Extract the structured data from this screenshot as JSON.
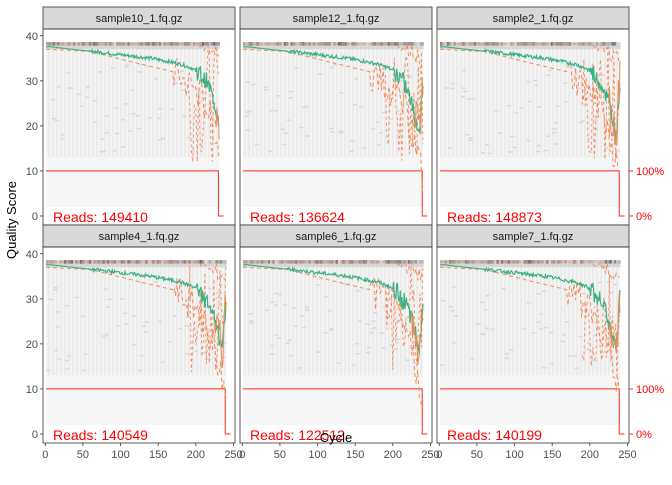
{
  "chart_data": {
    "type": "heatmap",
    "description_type": "faceted quality profile (heatmap of quality score distribution per cycle, with mean/quartile lines and cumulative read-length line)",
    "xlabel": "Cycle",
    "ylabel": "Quality Score",
    "x_ticks": [
      0,
      50,
      100,
      150,
      200,
      250
    ],
    "y_ticks": [
      0,
      10,
      20,
      30,
      40
    ],
    "secondary_y_ticks": [
      "0%",
      "100%"
    ],
    "xlim": [
      -3,
      252
    ],
    "ylim": [
      -2,
      41.5
    ],
    "colors": {
      "mean_line": "#3CB185",
      "quartile_lines": "#F28C5E",
      "cumulative_line": "#FF2A1A",
      "annotation": "#FF0000",
      "strip_bg": "#D9D9D9",
      "heat_low": "#EFEFEF",
      "heat_high": "#7A6A6A"
    },
    "facets": [
      {
        "title": "sample10_1.fq.gz",
        "reads_label": "Reads:  149410",
        "max_cycle": 231
      },
      {
        "title": "sample12_1.fq.gz",
        "reads_label": "Reads:  136624",
        "max_cycle": 240
      },
      {
        "title": "sample2_1.fq.gz",
        "reads_label": "Reads:  148873",
        "max_cycle": 240
      },
      {
        "title": "sample4_1.fq.gz",
        "reads_label": "Reads:  140549",
        "max_cycle": 240
      },
      {
        "title": "sample6_1.fq.gz",
        "reads_label": "Reads:  122512",
        "max_cycle": 240
      },
      {
        "title": "sample7_1.fq.gz",
        "reads_label": "Reads:  140199",
        "max_cycle": 240
      }
    ],
    "mean_profile": {
      "cycle": [
        1,
        5,
        20,
        40,
        60,
        80,
        100,
        120,
        140,
        160,
        180,
        195,
        205,
        215,
        220,
        225,
        230,
        235,
        240
      ],
      "quality": [
        37.5,
        37.6,
        37.3,
        36.9,
        36.6,
        36.2,
        35.8,
        35.4,
        35.0,
        34.4,
        33.7,
        32.8,
        31.5,
        29.5,
        27.5,
        25.0,
        22.0,
        18.0,
        30.0
      ]
    },
    "lower_quartile_profile": {
      "cycle": [
        1,
        60,
        120,
        170,
        200,
        215,
        225,
        235,
        240
      ],
      "quality": [
        37.0,
        36.5,
        34.0,
        32.0,
        28.0,
        24.0,
        19.0,
        12.0,
        8.0
      ]
    },
    "cumulative_length": {
      "percent_before_drop": 100,
      "percent_after_drop": 0
    }
  }
}
